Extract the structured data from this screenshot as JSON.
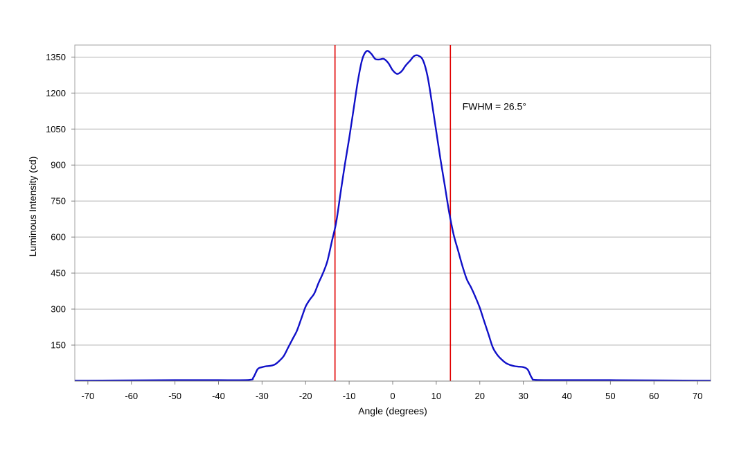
{
  "chart_data": {
    "type": "line",
    "xlabel": "Angle (degrees)",
    "ylabel": "Luminous Intensity (cd)",
    "xlim": [
      -73,
      73
    ],
    "ylim": [
      0,
      1400
    ],
    "x_ticks": [
      -70,
      -60,
      -50,
      -40,
      -30,
      -20,
      -10,
      0,
      10,
      20,
      30,
      40,
      50,
      60,
      70
    ],
    "y_ticks": [
      150,
      300,
      450,
      600,
      750,
      900,
      1050,
      1200,
      1350
    ],
    "grid": "horizontal",
    "series": [
      {
        "color": "#1010c8",
        "points": [
          [
            -73,
            2
          ],
          [
            -70,
            2
          ],
          [
            -60,
            3
          ],
          [
            -50,
            4
          ],
          [
            -40,
            4
          ],
          [
            -33,
            5
          ],
          [
            -32,
            15
          ],
          [
            -31,
            50
          ],
          [
            -30,
            58
          ],
          [
            -29,
            62
          ],
          [
            -28,
            64
          ],
          [
            -27,
            70
          ],
          [
            -26,
            85
          ],
          [
            -25,
            105
          ],
          [
            -24,
            140
          ],
          [
            -23,
            175
          ],
          [
            -22,
            210
          ],
          [
            -21,
            260
          ],
          [
            -20,
            310
          ],
          [
            -19,
            340
          ],
          [
            -18,
            365
          ],
          [
            -17,
            410
          ],
          [
            -16,
            450
          ],
          [
            -15,
            500
          ],
          [
            -14,
            580
          ],
          [
            -13,
            660
          ],
          [
            -12,
            780
          ],
          [
            -11,
            900
          ],
          [
            -10,
            1010
          ],
          [
            -9,
            1130
          ],
          [
            -8,
            1250
          ],
          [
            -7,
            1340
          ],
          [
            -6,
            1375
          ],
          [
            -5,
            1365
          ],
          [
            -4,
            1342
          ],
          [
            -3,
            1340
          ],
          [
            -2,
            1342
          ],
          [
            -1,
            1325
          ],
          [
            0,
            1295
          ],
          [
            1,
            1280
          ],
          [
            2,
            1290
          ],
          [
            3,
            1315
          ],
          [
            4,
            1335
          ],
          [
            5,
            1355
          ],
          [
            6,
            1355
          ],
          [
            7,
            1335
          ],
          [
            8,
            1270
          ],
          [
            9,
            1160
          ],
          [
            10,
            1040
          ],
          [
            11,
            920
          ],
          [
            12,
            810
          ],
          [
            13,
            700
          ],
          [
            14,
            610
          ],
          [
            15,
            545
          ],
          [
            16,
            480
          ],
          [
            17,
            425
          ],
          [
            18,
            390
          ],
          [
            19,
            350
          ],
          [
            20,
            305
          ],
          [
            21,
            250
          ],
          [
            22,
            195
          ],
          [
            23,
            140
          ],
          [
            24,
            110
          ],
          [
            25,
            90
          ],
          [
            26,
            75
          ],
          [
            27,
            67
          ],
          [
            28,
            62
          ],
          [
            29,
            60
          ],
          [
            30,
            58
          ],
          [
            31,
            48
          ],
          [
            32,
            12
          ],
          [
            33,
            5
          ],
          [
            40,
            4
          ],
          [
            50,
            4
          ],
          [
            60,
            3
          ],
          [
            70,
            2
          ],
          [
            73,
            2
          ]
        ]
      }
    ],
    "fwhm_lines": [
      {
        "x": -13.25,
        "color": "#e00000"
      },
      {
        "x": 13.25,
        "color": "#e00000"
      }
    ],
    "annotations": [
      {
        "text": "FWHM = 26.5°",
        "x": 16,
        "y": 1130
      }
    ]
  }
}
